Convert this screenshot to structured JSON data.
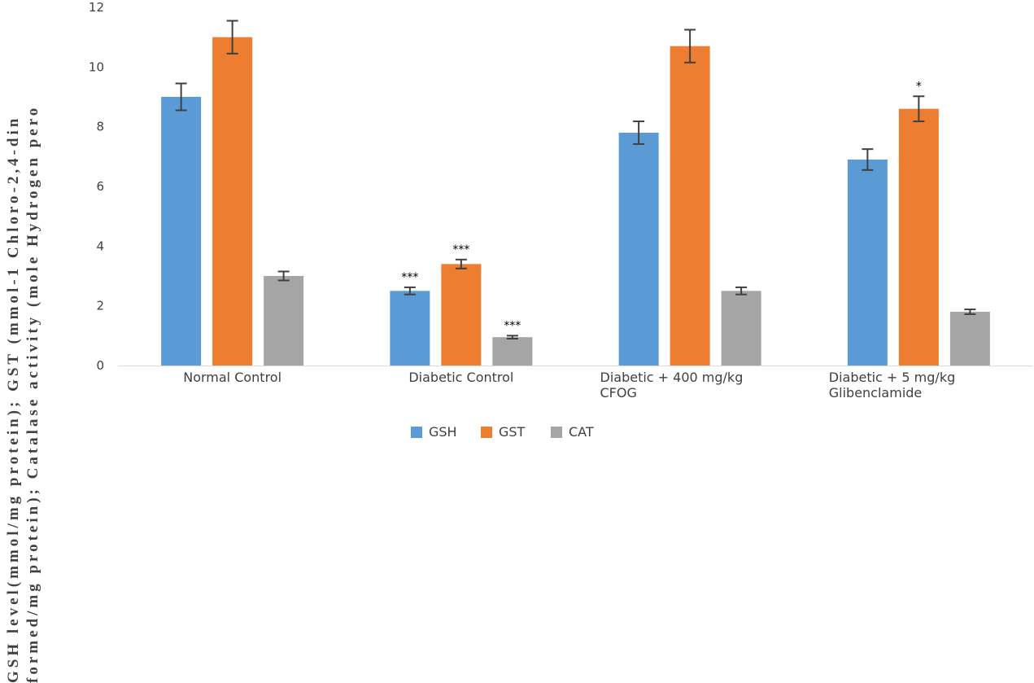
{
  "chart_data": {
    "type": "bar",
    "title": "",
    "xlabel": "",
    "ylabel_lines": [
      "GSH level(mmol/mg protein); GST (mmol-1 Chloro-2,4-din",
      "formed/mg protein); Catalase activity (mole Hydrogen pero"
    ],
    "ylim": [
      0,
      12
    ],
    "yticks": [
      0,
      2,
      4,
      6,
      8,
      10,
      12
    ],
    "grid": false,
    "legend_position": "bottom",
    "categories": [
      [
        "Normal Control"
      ],
      [
        "Diabetic Control"
      ],
      [
        "Diabetic + 400 mg/kg",
        "CFOG"
      ],
      [
        "Diabetic + 5 mg/kg",
        "Glibenclamide"
      ]
    ],
    "series": [
      {
        "name": "GSH",
        "color": "#5b9bd5",
        "values": [
          9.0,
          2.5,
          7.8,
          6.9
        ],
        "errors": [
          0.45,
          0.12,
          0.38,
          0.35
        ],
        "significance": [
          "",
          "***",
          "",
          ""
        ]
      },
      {
        "name": "GST",
        "color": "#ed7d31",
        "values": [
          11.0,
          3.4,
          10.7,
          8.6
        ],
        "errors": [
          0.55,
          0.15,
          0.55,
          0.42
        ],
        "significance": [
          "",
          "***",
          "",
          "*"
        ]
      },
      {
        "name": "CAT",
        "color": "#a5a5a5",
        "values": [
          3.0,
          0.95,
          2.5,
          1.8
        ],
        "errors": [
          0.15,
          0.05,
          0.12,
          0.08
        ],
        "significance": [
          "",
          "***",
          "",
          ""
        ]
      }
    ]
  }
}
